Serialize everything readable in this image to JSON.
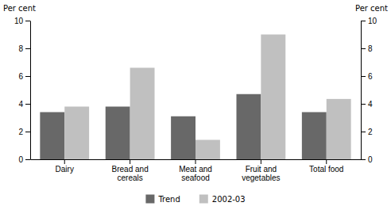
{
  "chart_data": {
    "type": "bar",
    "categories": [
      "Dairy",
      "Bread and\ncereals",
      "Meat and\nseafood",
      "Fruit and\nvegetables",
      "Total food"
    ],
    "series": [
      {
        "name": "Trend",
        "color": "#686868",
        "values": [
          3.4,
          3.8,
          3.1,
          4.7,
          3.4
        ]
      },
      {
        "name": "2002-03",
        "color": "#c0c0c0",
        "values": [
          3.8,
          6.6,
          1.4,
          9.0,
          4.35
        ]
      }
    ],
    "y_label": "Per cent",
    "y2_label": "Per cent",
    "ylim": [
      0,
      10
    ],
    "yticks": [
      0,
      2,
      4,
      6,
      8,
      10
    ],
    "y2lim": [
      0,
      10
    ],
    "y2ticks": [
      0,
      2,
      4,
      6,
      8,
      10
    ],
    "grid": false,
    "legend": "bottom"
  }
}
